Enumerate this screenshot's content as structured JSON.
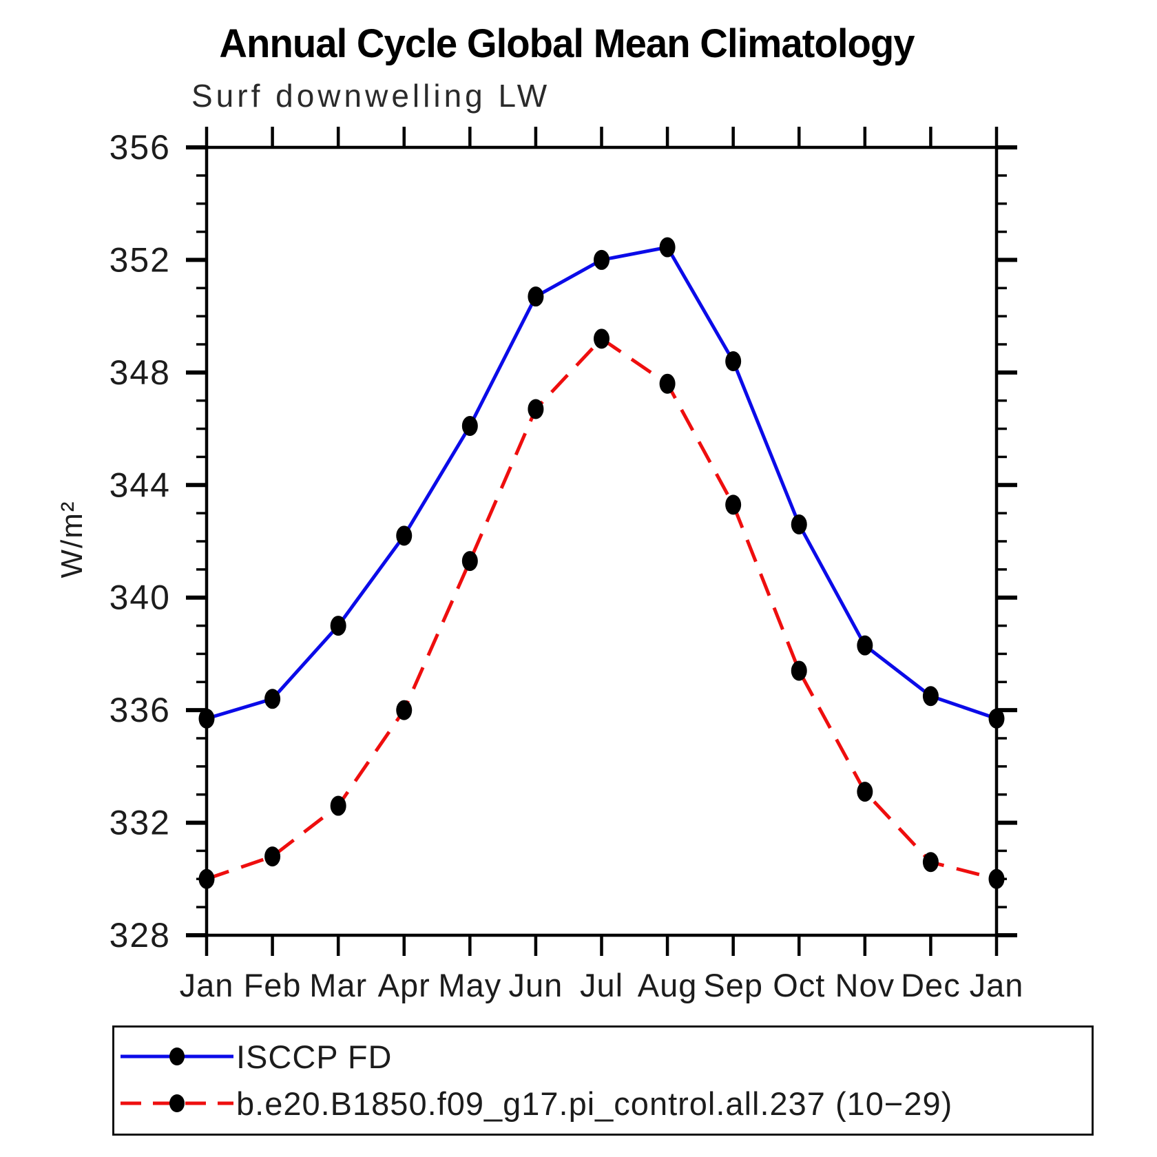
{
  "chart": {
    "title": "Annual Cycle Global Mean Climatology",
    "subtitle": "Surf downwelling LW",
    "ylabel": "W/m²"
  },
  "chart_data": {
    "type": "line",
    "title": "Annual Cycle Global Mean Climatology",
    "subtitle": "Surf downwelling LW",
    "xlabel": "",
    "ylabel": "W/m²",
    "categories": [
      "Jan",
      "Feb",
      "Mar",
      "Apr",
      "May",
      "Jun",
      "Jul",
      "Aug",
      "Sep",
      "Oct",
      "Nov",
      "Dec",
      "Jan"
    ],
    "series": [
      {
        "name": "ISCCP FD",
        "color": "#0b0be8",
        "line_style": "solid",
        "marker": "filled-circle",
        "marker_color": "#000000",
        "values": [
          335.7,
          336.4,
          339.0,
          342.2,
          346.1,
          350.7,
          352.0,
          352.45,
          348.4,
          342.6,
          338.3,
          336.5,
          335.7
        ]
      },
      {
        "name": "b.e20.B1850.f09_g17.pi_control.all.237 (10−29)",
        "color": "#ee0e0e",
        "line_style": "dashed",
        "marker": "filled-circle",
        "marker_color": "#000000",
        "values": [
          330.0,
          330.8,
          332.6,
          336.0,
          341.3,
          346.7,
          349.2,
          347.6,
          343.3,
          337.4,
          333.1,
          330.6,
          330.0
        ]
      }
    ],
    "ylim": [
      328,
      356
    ],
    "yticks": [
      328,
      332,
      336,
      340,
      344,
      348,
      352,
      356
    ],
    "ytick_minor_interval": 1,
    "grid": false,
    "frame": "box",
    "tick_direction": "out",
    "legend_position": "bottom"
  }
}
